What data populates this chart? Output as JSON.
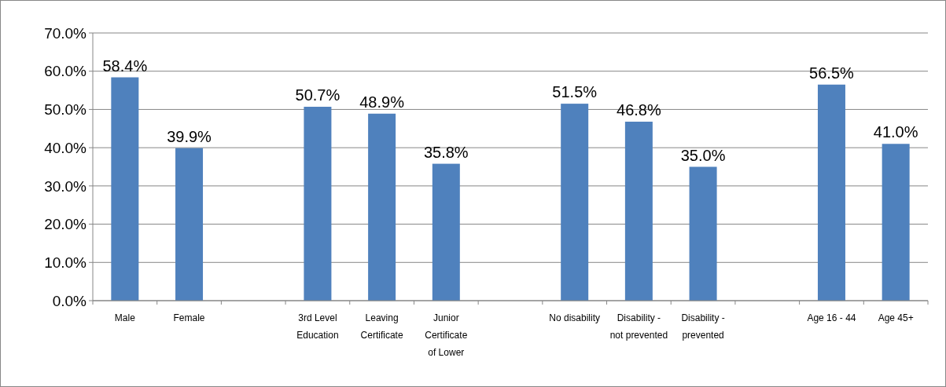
{
  "chart_data": {
    "type": "bar",
    "categories": [
      "Male",
      "Female",
      null,
      "3rd Level Education",
      "Leaving Certificate",
      "Junior Certificate of Lower",
      null,
      "No disability",
      "Disability - not prevented",
      "Disability - prevented",
      null,
      "Age 16 - 44",
      "Age 45+"
    ],
    "values": [
      58.4,
      39.9,
      null,
      50.7,
      48.9,
      35.8,
      null,
      51.5,
      46.8,
      35.0,
      null,
      56.5,
      41.0
    ],
    "value_labels": [
      "58.4%",
      "39.9%",
      null,
      "50.7%",
      "48.9%",
      "35.8%",
      null,
      "51.5%",
      "46.8%",
      "35.0%",
      null,
      "56.5%",
      "41.0%"
    ],
    "color": "#4f81bd",
    "ylim": [
      0,
      70
    ],
    "yticks": [
      {
        "value": 0,
        "label": "0.0%"
      },
      {
        "value": 10,
        "label": "10.0%"
      },
      {
        "value": 20,
        "label": "20.0%"
      },
      {
        "value": 30,
        "label": "30.0%"
      },
      {
        "value": 40,
        "label": "40.0%"
      },
      {
        "value": 50,
        "label": "50.0%"
      },
      {
        "value": 60,
        "label": "60.0%"
      },
      {
        "value": 70,
        "label": "70.0%"
      }
    ],
    "grid": "y"
  }
}
